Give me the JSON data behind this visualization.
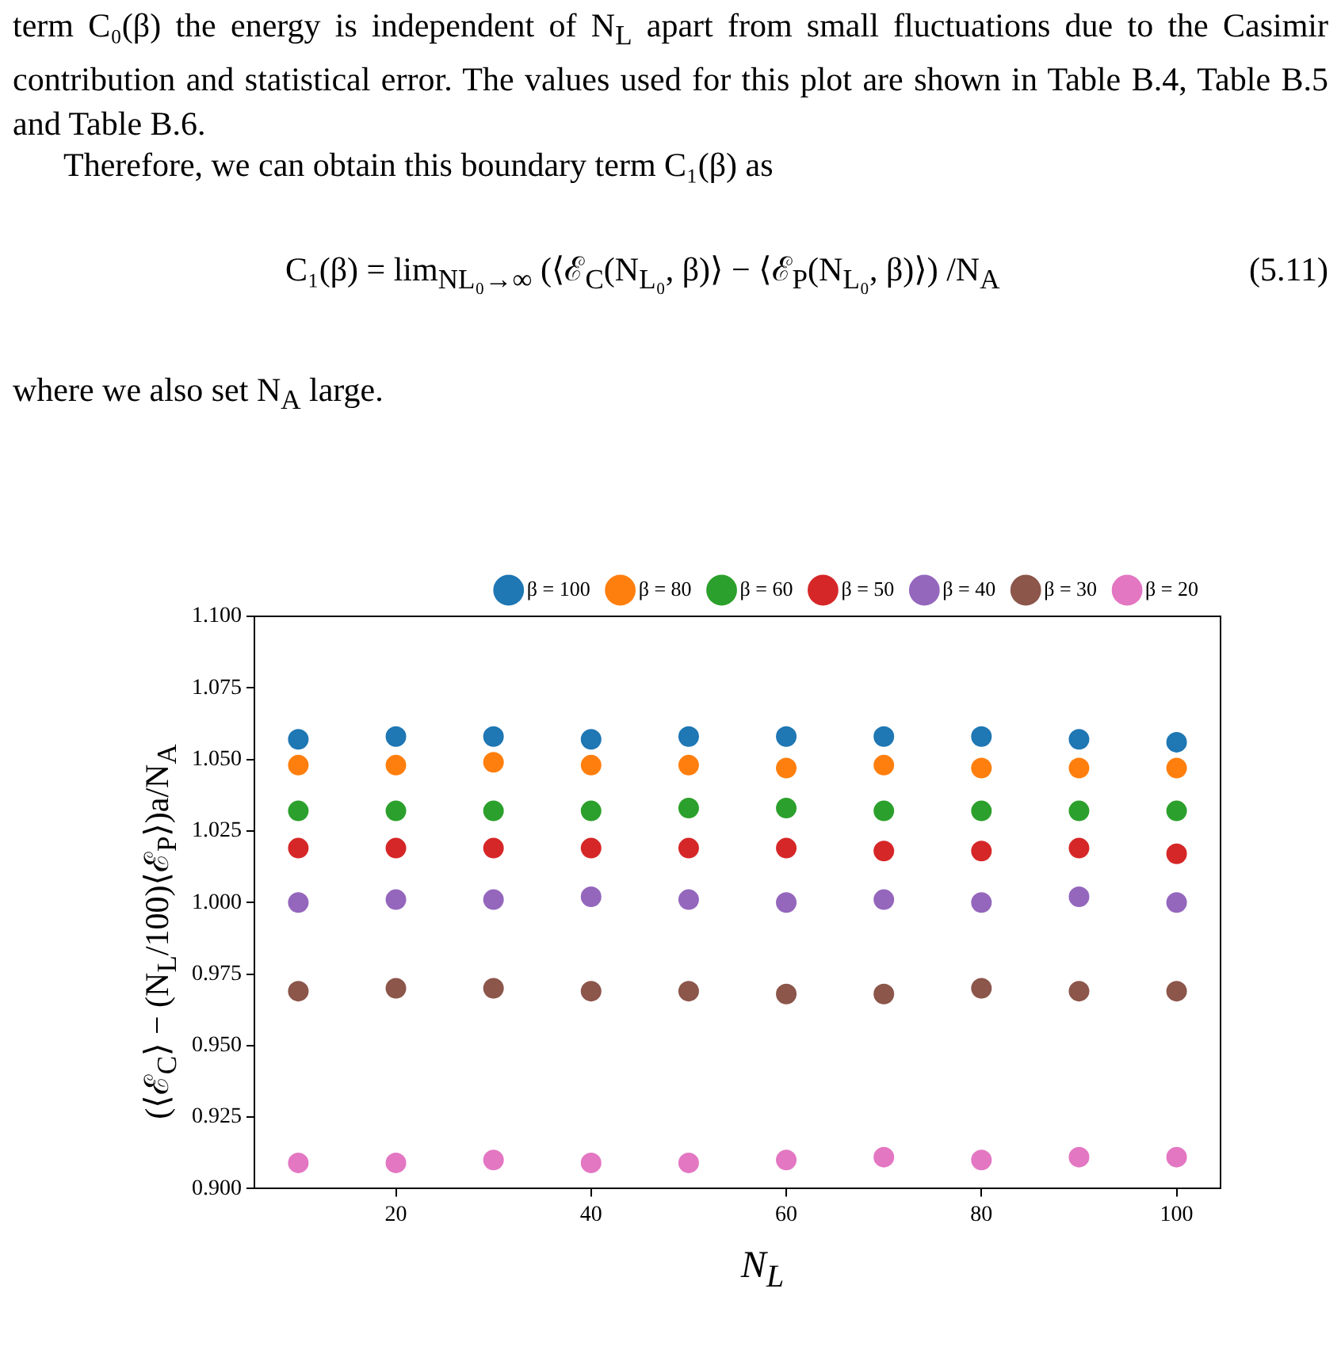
{
  "chart_data": {
    "type": "scatter",
    "annotations": [
      "term C₀(β) the energy is independent of N$_{L}$ apart from small fluctuations due to the Casimir contribution and statistical error. The values used for this plot are shown in Table B.4, Table B.5 and Table B.6.",
      "Therefore, we can obtain this boundary term C₁(β) as",
      "C₁(β) = lim$_{NL₀→∞}$ (⟨ℰ$_{C}$(N$_{L₀}$, β)⟩ − ⟨ℰ$_{P}$(N$_{L₀}$, β)⟩) /N$_{A}$",
      "(5.11)",
      "where we also set N$_{A}$ large."
    ],
    "xlabel": "N$_{L}$",
    "ylabel": "(⟨ℰ$_{C}$⟩ − (N$_{L}$/100)⟨ℰ$_{P}$⟩)a/N$_{A}$",
    "x": [
      10,
      20,
      30,
      40,
      50,
      60,
      70,
      80,
      90,
      100
    ],
    "series": [
      {
        "name": "β = 100",
        "color": "#1f77b4",
        "values": [
          1.057,
          1.058,
          1.058,
          1.057,
          1.058,
          1.058,
          1.058,
          1.058,
          1.057,
          1.056
        ]
      },
      {
        "name": "β = 80",
        "color": "#ff7f0e",
        "values": [
          1.048,
          1.048,
          1.049,
          1.048,
          1.048,
          1.047,
          1.048,
          1.047,
          1.047,
          1.047
        ]
      },
      {
        "name": "β = 60",
        "color": "#2ca02c",
        "values": [
          1.032,
          1.032,
          1.032,
          1.032,
          1.033,
          1.033,
          1.032,
          1.032,
          1.032,
          1.032
        ]
      },
      {
        "name": "β = 50",
        "color": "#d62728",
        "values": [
          1.019,
          1.019,
          1.019,
          1.019,
          1.019,
          1.019,
          1.018,
          1.018,
          1.019,
          1.017
        ]
      },
      {
        "name": "β = 40",
        "color": "#9467bd",
        "values": [
          1.0,
          1.001,
          1.001,
          1.002,
          1.001,
          1.0,
          1.001,
          1.0,
          1.002,
          1.0
        ]
      },
      {
        "name": "β = 30",
        "color": "#8c564b",
        "values": [
          0.969,
          0.97,
          0.97,
          0.969,
          0.969,
          0.968,
          0.968,
          0.97,
          0.969,
          0.969
        ]
      },
      {
        "name": "β = 20",
        "color": "#e377c2",
        "values": [
          0.909,
          0.909,
          0.91,
          0.909,
          0.909,
          0.91,
          0.911,
          0.91,
          0.911,
          0.911
        ]
      }
    ],
    "xlim": [
      5.5,
      104.5
    ],
    "xticks": [
      20,
      40,
      60,
      80,
      100
    ],
    "ylim": [
      0.9,
      1.1
    ],
    "yticks": [
      {
        "value": 0.9,
        "label": "0.900"
      },
      {
        "value": 0.925,
        "label": "0.925"
      },
      {
        "value": 0.95,
        "label": "0.950"
      },
      {
        "value": 0.975,
        "label": "0.975"
      },
      {
        "value": 1.0,
        "label": "1.000"
      },
      {
        "value": 1.025,
        "label": "1.025"
      },
      {
        "value": 1.05,
        "label": "1.050"
      },
      {
        "value": 1.075,
        "label": "1.075"
      },
      {
        "value": 1.1,
        "label": "1.100"
      }
    ],
    "grid": false,
    "legend": "top right",
    "marker": "circle"
  }
}
